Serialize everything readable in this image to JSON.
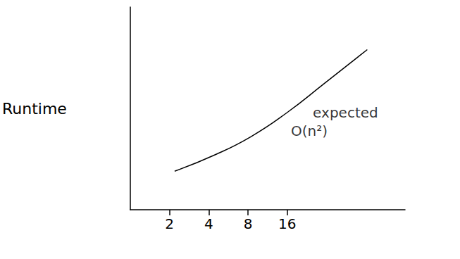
{
  "chart_data": {
    "type": "line",
    "y_label": "Runtime",
    "x": [
      2.19,
      4.43,
      8.4,
      16,
      30.4,
      65.7
    ],
    "values": [
      19,
      27,
      36,
      48,
      62,
      79
    ],
    "xlim": [
      1,
      128
    ],
    "xticks": [
      2,
      4,
      8,
      16
    ],
    "ylim": [
      0,
      100
    ],
    "yticks": [],
    "log": "x",
    "grid": false,
    "tick_labels": "x",
    "color": "#000000",
    "annotations": [
      {
        "text": "O(n²)",
        "x": 23.6,
        "y": 39
      },
      {
        "text": "expected",
        "x": 44.7,
        "y": 48
      }
    ]
  }
}
